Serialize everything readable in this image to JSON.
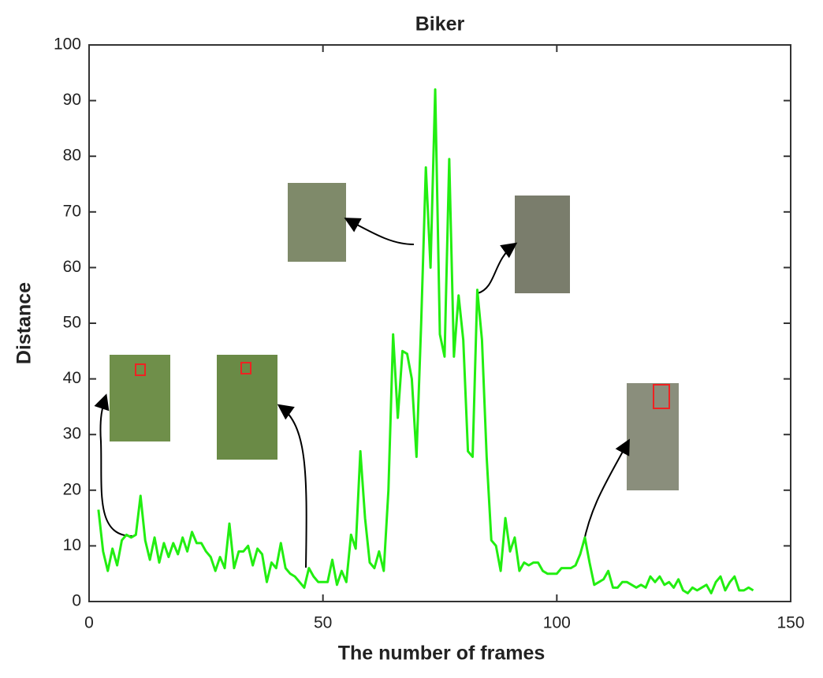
{
  "chart_data": {
    "type": "line",
    "title": "Biker",
    "x_label": "The number of frames",
    "y_label": "Distance",
    "xlim": [
      0,
      150
    ],
    "xticks": [
      0,
      50,
      100,
      150
    ],
    "ylim": [
      0,
      100
    ],
    "yticks": [
      0,
      10,
      20,
      30,
      40,
      50,
      60,
      70,
      80,
      90,
      100
    ],
    "grid": false,
    "x": [
      2,
      3,
      4,
      5,
      6,
      7,
      8,
      9,
      10,
      11,
      12,
      13,
      14,
      15,
      16,
      17,
      18,
      19,
      20,
      21,
      22,
      23,
      24,
      25,
      26,
      27,
      28,
      29,
      30,
      31,
      32,
      33,
      34,
      35,
      36,
      37,
      38,
      39,
      40,
      41,
      42,
      43,
      44,
      45,
      46,
      47,
      48,
      49,
      50,
      51,
      52,
      53,
      54,
      55,
      56,
      57,
      58,
      59,
      60,
      61,
      62,
      63,
      64,
      65,
      66,
      67,
      68,
      69,
      70,
      71,
      72,
      73,
      74,
      75,
      76,
      77,
      78,
      79,
      80,
      81,
      82,
      83,
      84,
      85,
      86,
      87,
      88,
      89,
      90,
      91,
      92,
      93,
      94,
      95,
      96,
      97,
      98,
      99,
      100,
      101,
      102,
      103,
      104,
      105,
      106,
      107,
      108,
      109,
      110,
      111,
      112,
      113,
      114,
      115,
      116,
      117,
      118,
      119,
      120,
      121,
      122,
      123,
      124,
      125,
      126,
      127,
      128,
      129,
      130,
      131,
      132,
      133,
      134,
      135,
      136,
      137,
      138,
      139,
      140,
      141,
      142
    ],
    "series": [
      {
        "name": "Biker",
        "color": "#22ee11",
        "values": [
          16.5,
          9,
          5.5,
          9.5,
          6.5,
          11,
          12,
          11.5,
          12,
          19,
          11,
          7.5,
          11.5,
          7,
          10.5,
          8,
          10.5,
          8.5,
          11.5,
          9,
          12.5,
          10.5,
          10.5,
          9,
          8,
          5.5,
          8,
          6,
          14,
          6,
          9,
          9,
          10,
          6.5,
          9.5,
          8.5,
          3.5,
          7,
          6,
          10.5,
          6,
          5,
          4.5,
          3.5,
          2.5,
          6,
          4.5,
          3.5,
          3.5,
          3.5,
          7.5,
          3,
          5.5,
          3.5,
          12,
          9.5,
          27,
          15,
          7,
          6,
          9,
          5.5,
          20,
          48,
          33,
          45,
          44.5,
          40,
          26,
          50,
          78,
          60,
          92,
          48,
          44,
          79.5,
          44,
          55,
          47,
          27,
          26,
          56,
          47,
          26,
          11,
          10,
          5.5,
          15,
          9,
          11.5,
          5.5,
          7,
          6.5,
          7,
          7,
          5.5,
          5,
          5,
          5,
          6,
          6,
          6,
          6.5,
          8.5,
          11.5,
          7,
          3,
          3.5,
          4,
          5.5,
          2.5,
          2.5,
          3.5,
          3.5,
          3,
          2.5,
          3,
          2.5,
          4.5,
          3.5,
          4.5,
          3,
          3.5,
          2.5,
          4,
          2,
          1.5,
          2.5,
          2,
          2.5,
          3,
          1.5,
          3.5,
          4.5,
          2,
          3.5,
          4.5,
          2,
          2,
          2.5,
          2
        ]
      }
    ]
  }
}
